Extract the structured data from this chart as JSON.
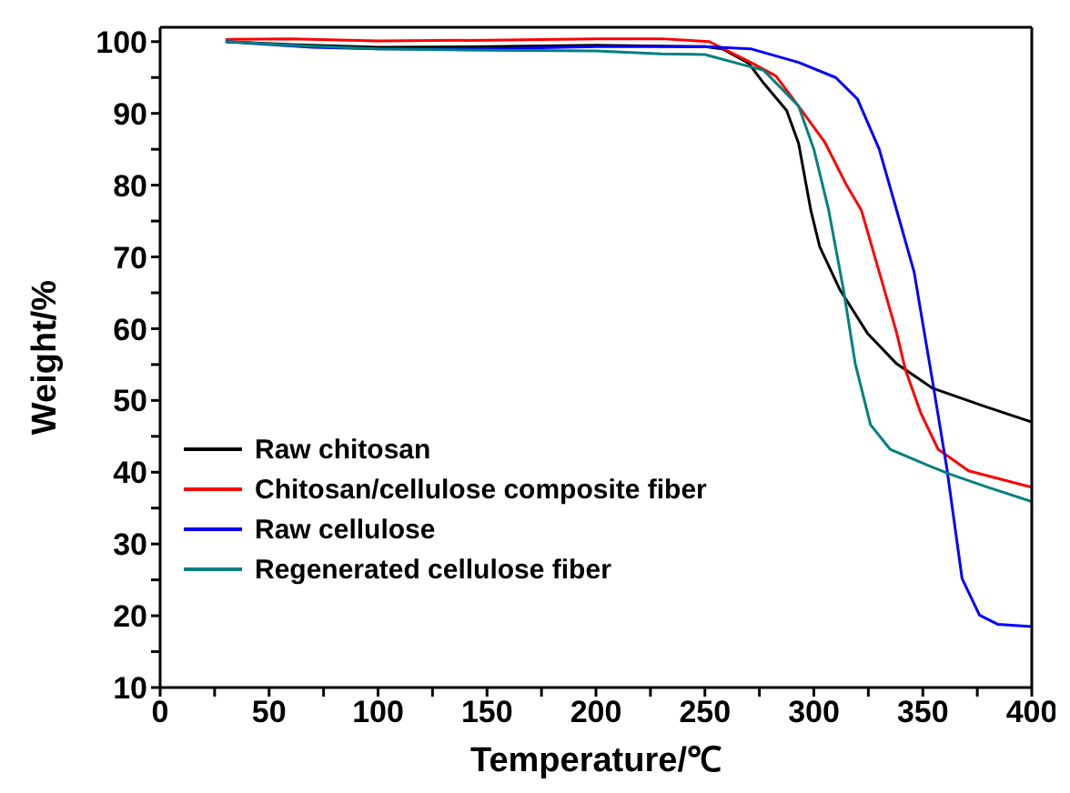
{
  "chart_data": {
    "type": "line",
    "xlabel": "Temperature/℃",
    "ylabel": "Weight/%",
    "xlim": [
      0,
      400
    ],
    "ylim": [
      10,
      102
    ],
    "xticks": [
      0,
      {
        "value": 25,
        "label": null
      },
      50,
      {
        "value": 75,
        "label": null
      },
      100,
      {
        "value": 125,
        "label": null
      },
      150,
      {
        "value": 175,
        "label": null
      },
      200,
      {
        "value": 225,
        "label": null
      },
      250,
      {
        "value": 275,
        "label": null
      },
      300,
      {
        "value": 325,
        "label": null
      },
      350,
      {
        "value": 375,
        "label": null
      },
      400
    ],
    "yticks": [
      10,
      {
        "value": 15,
        "label": null
      },
      20,
      {
        "value": 25,
        "label": null
      },
      30,
      {
        "value": 35,
        "label": null
      },
      40,
      {
        "value": 45,
        "label": null
      },
      50,
      {
        "value": 55,
        "label": null
      },
      60,
      {
        "value": 65,
        "label": null
      },
      70,
      {
        "value": 75,
        "label": null
      },
      80,
      {
        "value": 85,
        "label": null
      },
      90,
      {
        "value": 95,
        "label": null
      },
      100
    ],
    "legend": "bottom left",
    "marker": "none",
    "line_style": "solid",
    "series": [
      {
        "name": "Raw chitosan",
        "color": "#000000",
        "x": [
          30,
          60,
          100,
          150,
          200,
          250,
          258,
          270,
          277,
          287.5,
          293,
          298.6,
          302.7,
          312,
          324.5,
          338,
          354.5,
          379,
          400
        ],
        "values": [
          100,
          99.6,
          99.2,
          99.3,
          99.5,
          99.3,
          99,
          97,
          94.2,
          90.4,
          85.8,
          76.5,
          71.4,
          65.4,
          59.4,
          55.1,
          51.7,
          49.1,
          47
        ]
      },
      {
        "name": "Chitosan/cellulose composite fiber",
        "color": "#ff0000",
        "x": [
          30,
          60,
          100,
          150,
          200,
          230,
          252,
          271,
          282.6,
          293,
          305,
          315,
          321.8,
          330,
          338,
          342,
          349,
          357,
          371,
          400
        ],
        "values": [
          100.3,
          100.4,
          100.1,
          100.2,
          100.4,
          100.4,
          100,
          97.1,
          95.2,
          91,
          86,
          80,
          76.5,
          67.9,
          59.4,
          54.3,
          48.3,
          43.2,
          40.2,
          37.9
        ]
      },
      {
        "name": "Raw cellulose",
        "color": "#0000ff",
        "x": [
          30,
          70,
          100,
          150,
          200,
          250,
          271,
          293,
          310,
          320,
          330,
          338,
          346,
          354.5,
          361,
          368,
          376,
          384.5,
          400
        ],
        "values": [
          100,
          99.2,
          99,
          99,
          99.3,
          99.3,
          99,
          97.1,
          95,
          92,
          85,
          76.5,
          67.9,
          52.6,
          40.6,
          25.2,
          20.1,
          18.8,
          18.5
        ]
      },
      {
        "name": "Regenerated cellulose fiber",
        "color": "#008080",
        "x": [
          30,
          60,
          100,
          150,
          200,
          230,
          250,
          277,
          293,
          300,
          306.8,
          313.6,
          319,
          326,
          335,
          352,
          362.7,
          379,
          400
        ],
        "values": [
          100,
          99.5,
          99,
          98.8,
          98.7,
          98.3,
          98.2,
          96,
          91,
          85,
          76.5,
          65.4,
          55.1,
          46.6,
          43.2,
          41,
          39.7,
          38,
          35.9
        ]
      }
    ]
  }
}
